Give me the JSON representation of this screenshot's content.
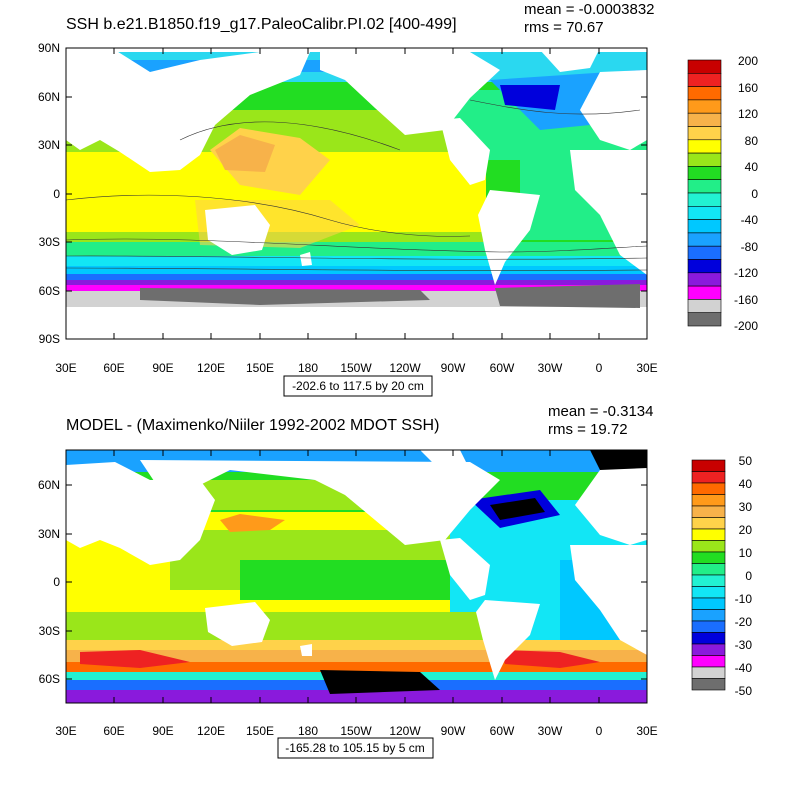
{
  "top_panel": {
    "title": "SSH b.e21.B1850.f19_g17.PaleoCalibr.PI.02 [400-499]",
    "mean_label": "mean = -0.0003832",
    "rms_label": "rms = 70.67",
    "range_label": "-202.6 to 117.5 by 20 cm",
    "lat_labels": [
      "90N",
      "60N",
      "30N",
      "0",
      "30S",
      "60S",
      "90S"
    ],
    "lon_labels": [
      "30E",
      "60E",
      "90E",
      "120E",
      "150E",
      "180",
      "150W",
      "120W",
      "90W",
      "60W",
      "30W",
      "0",
      "30E"
    ],
    "colorbar_labels": [
      "200",
      "160",
      "120",
      "80",
      "40",
      "0",
      "-40",
      "-80",
      "-120",
      "-160",
      "-200"
    ],
    "colorbar_colors": [
      "#c80000",
      "#ee2222",
      "#ff6a00",
      "#ff9a1a",
      "#f7b24a",
      "#ffd24a",
      "#ffff00",
      "#9ae61a",
      "#22dd22",
      "#22ee88",
      "#22f2d2",
      "#12e6f5",
      "#00c8ff",
      "#1aa2ff",
      "#1a6eff",
      "#0000dc",
      "#8a1adc",
      "#ff00ff",
      "#d2d2d2",
      "#6e6e6e"
    ]
  },
  "bottom_panel": {
    "title": "MODEL - (Maximenko/Niiler 1992-2002 MDOT SSH)",
    "mean_label": "mean = -0.3134",
    "rms_label": "rms = 19.72",
    "range_label": "-165.28 to 105.15 by 5 cm",
    "lat_labels": [
      "60N",
      "30N",
      "0",
      "30S",
      "60S"
    ],
    "lon_labels": [
      "30E",
      "60E",
      "90E",
      "120E",
      "150E",
      "180",
      "150W",
      "120W",
      "90W",
      "60W",
      "30W",
      "0",
      "30E"
    ],
    "colorbar_labels": [
      "50",
      "40",
      "30",
      "20",
      "10",
      "0",
      "-10",
      "-20",
      "-30",
      "-40",
      "-50"
    ],
    "colorbar_colors": [
      "#c80000",
      "#ee2222",
      "#ff6a00",
      "#ff9a1a",
      "#f7b24a",
      "#ffd24a",
      "#ffff00",
      "#9ae61a",
      "#22dd22",
      "#22ee88",
      "#22f2d2",
      "#12e6f5",
      "#00c8ff",
      "#1aa2ff",
      "#1a6eff",
      "#0000dc",
      "#8a1adc",
      "#ff00ff",
      "#d2d2d2",
      "#6e6e6e"
    ]
  },
  "colors": {
    "land": "#ffffff",
    "frame": "#000000"
  }
}
